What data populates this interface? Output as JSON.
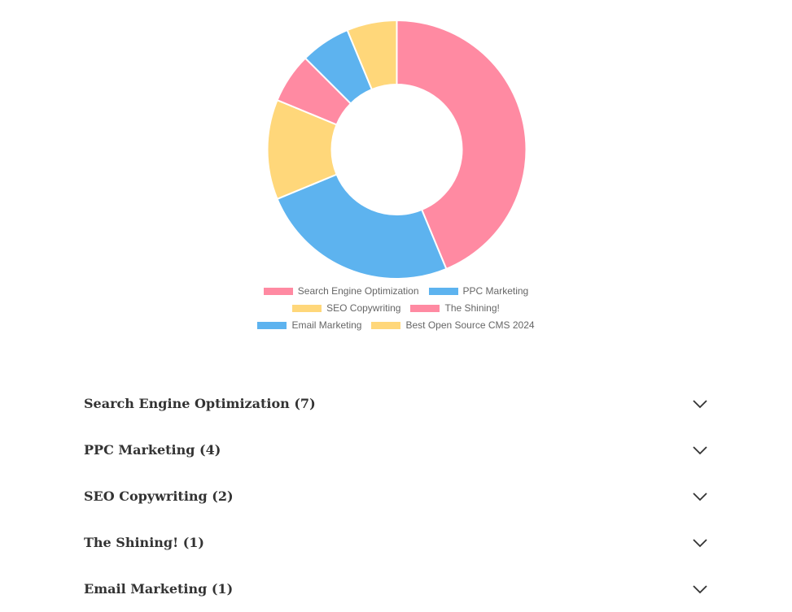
{
  "chart_data": {
    "type": "pie",
    "variant": "doughnut",
    "categories": [
      "Search Engine Optimization",
      "PPC Marketing",
      "SEO Copywriting",
      "The Shining!",
      "Email Marketing",
      "Best Open Source CMS 2024"
    ],
    "values": [
      7,
      4,
      2,
      1,
      1,
      1
    ],
    "colors": [
      "#ff8aa2",
      "#5db3ef",
      "#ffd77a",
      "#ff8aa2",
      "#5db3ef",
      "#ffd77a"
    ],
    "legend_position": "bottom"
  },
  "accordion": {
    "items": [
      {
        "label": "Search Engine Optimization",
        "count": "(7)"
      },
      {
        "label": "PPC Marketing",
        "count": "(4)"
      },
      {
        "label": "SEO Copywriting",
        "count": "(2)"
      },
      {
        "label": "The Shining!",
        "count": "(1)"
      },
      {
        "label": "Email Marketing",
        "count": "(1)"
      }
    ],
    "chevron_icon": "chevron-down-icon"
  }
}
